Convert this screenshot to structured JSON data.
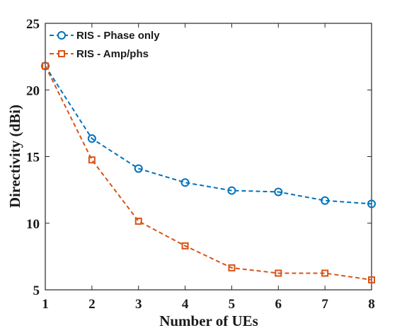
{
  "chart_data": {
    "type": "line",
    "xlabel": "Number of UEs",
    "ylabel": "Directivity (dBi)",
    "xlim": [
      1,
      8
    ],
    "ylim": [
      5,
      25
    ],
    "x": [
      1,
      2,
      3,
      4,
      5,
      6,
      7,
      8
    ],
    "xticks": [
      "1",
      "2",
      "3",
      "4",
      "5",
      "6",
      "7",
      "8"
    ],
    "yticks": [
      "5",
      "10",
      "15",
      "20",
      "25"
    ],
    "grid": false,
    "legend_position": "top-left",
    "series": [
      {
        "name": "RIS - Phase only",
        "values": [
          21.8,
          16.35,
          14.1,
          13.05,
          12.45,
          12.35,
          11.7,
          11.45
        ],
        "color": "#0072BD",
        "marker": "circle",
        "line_style": "dashed"
      },
      {
        "name": "RIS - Amp/phs",
        "values": [
          21.8,
          14.75,
          10.15,
          8.3,
          6.65,
          6.25,
          6.25,
          5.75
        ],
        "color": "#D95319",
        "marker": "square",
        "line_style": "dashed"
      }
    ]
  }
}
